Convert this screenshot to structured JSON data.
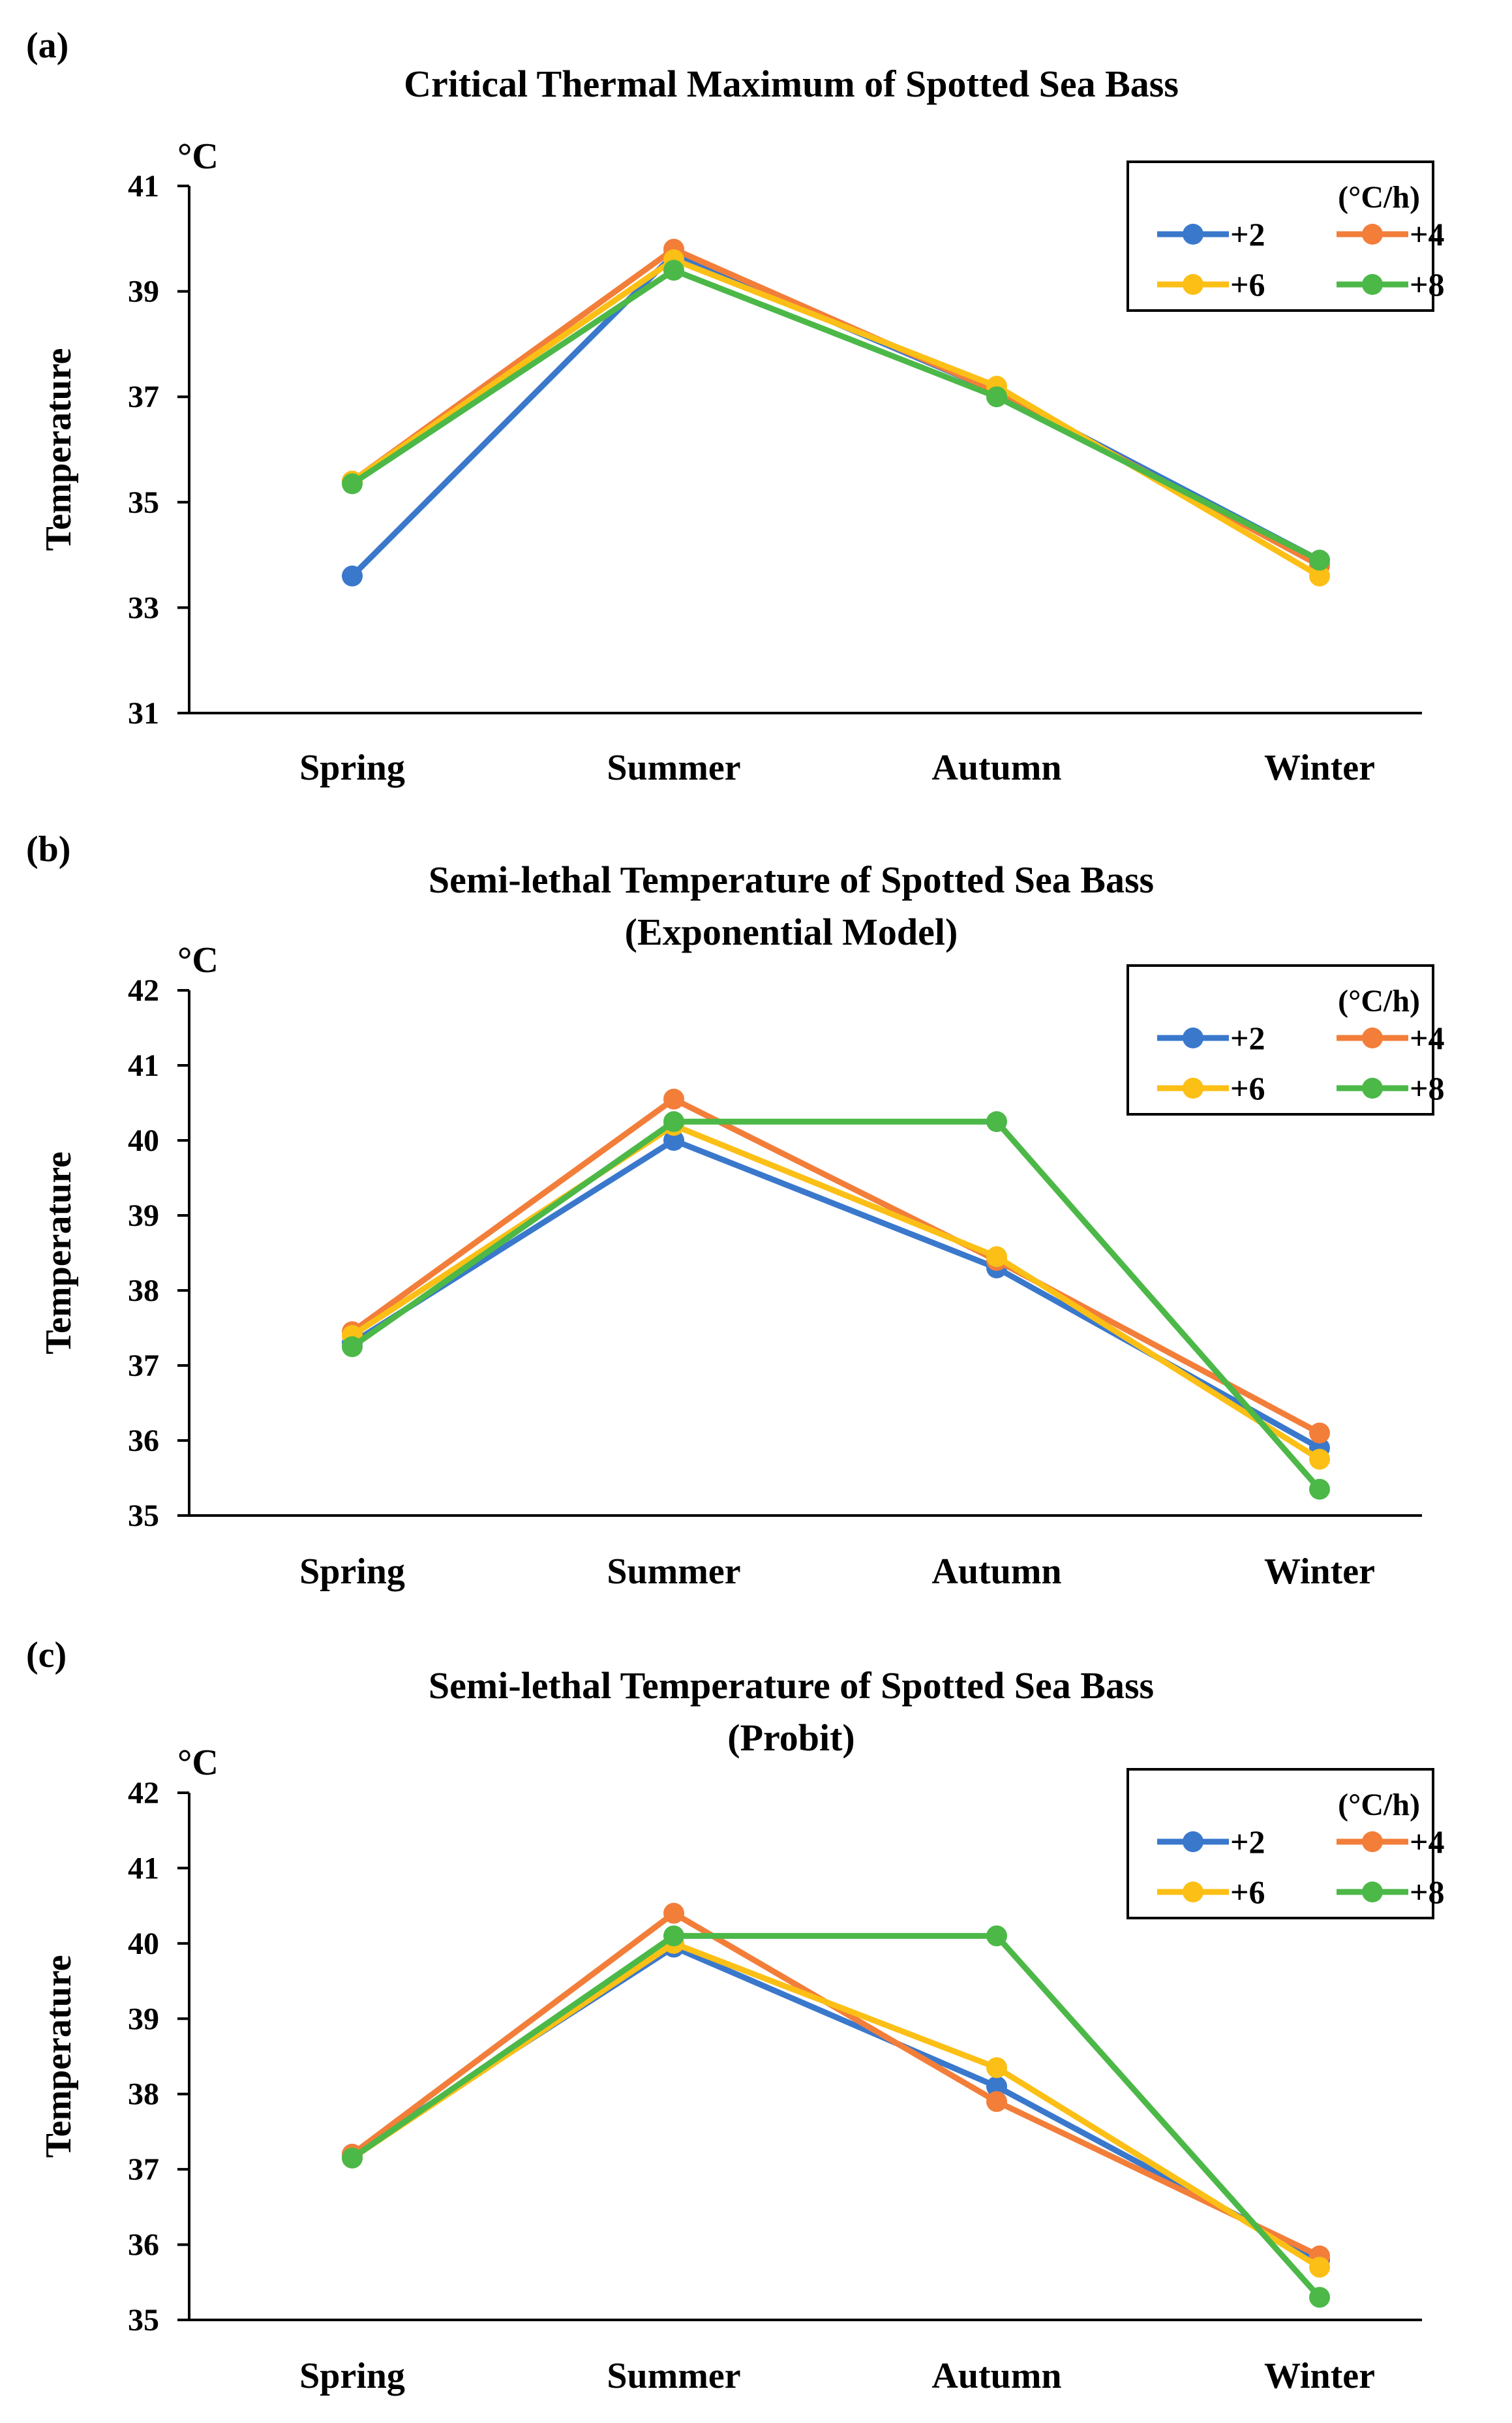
{
  "colors": {
    "+2": "#3a78cc",
    "+4": "#f27e3a",
    "+6": "#fbbf16",
    "+8": "#4cb848"
  },
  "chart_data": [
    {
      "panel_label": "(a)",
      "type": "line",
      "title": "Critical Thermal Maximum of  Spotted Sea Bass",
      "subtitle": "",
      "unit": "°C",
      "ylabel": "Temperature",
      "xlabel": "",
      "ylim": [
        31,
        41
      ],
      "yticks": [
        "31",
        "33",
        "35",
        "37",
        "39",
        "41"
      ],
      "categories": [
        "Spring",
        "Summer",
        "Autumn",
        "Winter"
      ],
      "legend_title": "(°C/h)",
      "legend_position": "top-right",
      "series": [
        {
          "name": "+2",
          "values": [
            33.6,
            39.7,
            37.1,
            33.9
          ]
        },
        {
          "name": "+4",
          "values": [
            35.4,
            39.8,
            37.1,
            33.8
          ]
        },
        {
          "name": "+6",
          "values": [
            35.4,
            39.6,
            37.2,
            33.6
          ]
        },
        {
          "name": "+8",
          "values": [
            35.35,
            39.4,
            37.0,
            33.9
          ]
        }
      ]
    },
    {
      "panel_label": "(b)",
      "type": "line",
      "title": "Semi-lethal Temperature of  Spotted Sea Bass",
      "subtitle": "(Exponential Model)",
      "unit": "°C",
      "ylabel": "Temperature",
      "xlabel": "",
      "ylim": [
        35,
        42
      ],
      "yticks": [
        "35",
        "36",
        "37",
        "38",
        "39",
        "40",
        "41",
        "42"
      ],
      "categories": [
        "Spring",
        "Summer",
        "Autumn",
        "Winter"
      ],
      "legend_title": "(°C/h)",
      "legend_position": "top-right",
      "series": [
        {
          "name": "+2",
          "values": [
            37.3,
            40.0,
            38.3,
            35.9
          ]
        },
        {
          "name": "+4",
          "values": [
            37.45,
            40.55,
            38.4,
            36.1
          ]
        },
        {
          "name": "+6",
          "values": [
            37.4,
            40.2,
            38.45,
            35.75
          ]
        },
        {
          "name": "+8",
          "values": [
            37.25,
            40.25,
            40.25,
            35.35
          ]
        }
      ]
    },
    {
      "panel_label": "(c)",
      "type": "line",
      "title": "Semi-lethal Temperature of  Spotted Sea Bass",
      "subtitle": "(Probit)",
      "unit": "°C",
      "ylabel": "Temperature",
      "xlabel": "",
      "ylim": [
        35,
        42
      ],
      "yticks": [
        "35",
        "36",
        "37",
        "38",
        "39",
        "40",
        "41",
        "42"
      ],
      "categories": [
        "Spring",
        "Summer",
        "Autumn",
        "Winter"
      ],
      "legend_title": "(°C/h)",
      "legend_position": "top-right",
      "series": [
        {
          "name": "+2",
          "values": [
            37.2,
            39.95,
            38.1,
            35.8
          ]
        },
        {
          "name": "+4",
          "values": [
            37.2,
            40.4,
            37.9,
            35.85
          ]
        },
        {
          "name": "+6",
          "values": [
            37.15,
            40.0,
            38.35,
            35.7
          ]
        },
        {
          "name": "+8",
          "values": [
            37.15,
            40.1,
            40.1,
            35.3
          ]
        }
      ]
    }
  ]
}
